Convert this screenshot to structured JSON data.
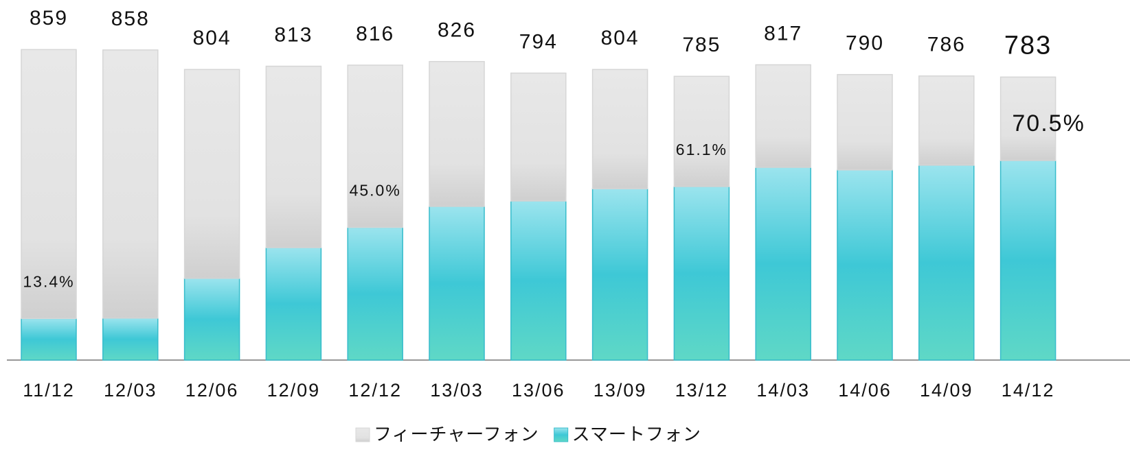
{
  "chart_data": {
    "type": "stacked_bar",
    "categories": [
      "11/12",
      "12/03",
      "12/06",
      "12/09",
      "12/12",
      "13/03",
      "13/06",
      "13/09",
      "13/12",
      "14/03",
      "14/06",
      "14/09",
      "14/12"
    ],
    "series": [
      {
        "name": "スマートフォン",
        "color": "#3ec8d6",
        "values": [
          115,
          116,
          226,
          311,
          367,
          425,
          440,
          474,
          480,
          533,
          526,
          539,
          552
        ]
      },
      {
        "name": "フィーチャーフォン",
        "color": "#e4e4e4",
        "values": [
          744,
          742,
          578,
          502,
          449,
          401,
          354,
          330,
          305,
          284,
          264,
          247,
          231
        ]
      }
    ],
    "totals": [
      859,
      858,
      804,
      813,
      816,
      826,
      794,
      804,
      785,
      817,
      790,
      786,
      783
    ],
    "shares": [
      13.4,
      null,
      null,
      null,
      45.0,
      null,
      null,
      null,
      61.1,
      null,
      null,
      null,
      70.5
    ],
    "share_labels": [
      "13.4%",
      null,
      null,
      null,
      "45.0%",
      null,
      null,
      null,
      "61.1%",
      null,
      null,
      null,
      "70.5%"
    ],
    "legend": "bottom"
  }
}
